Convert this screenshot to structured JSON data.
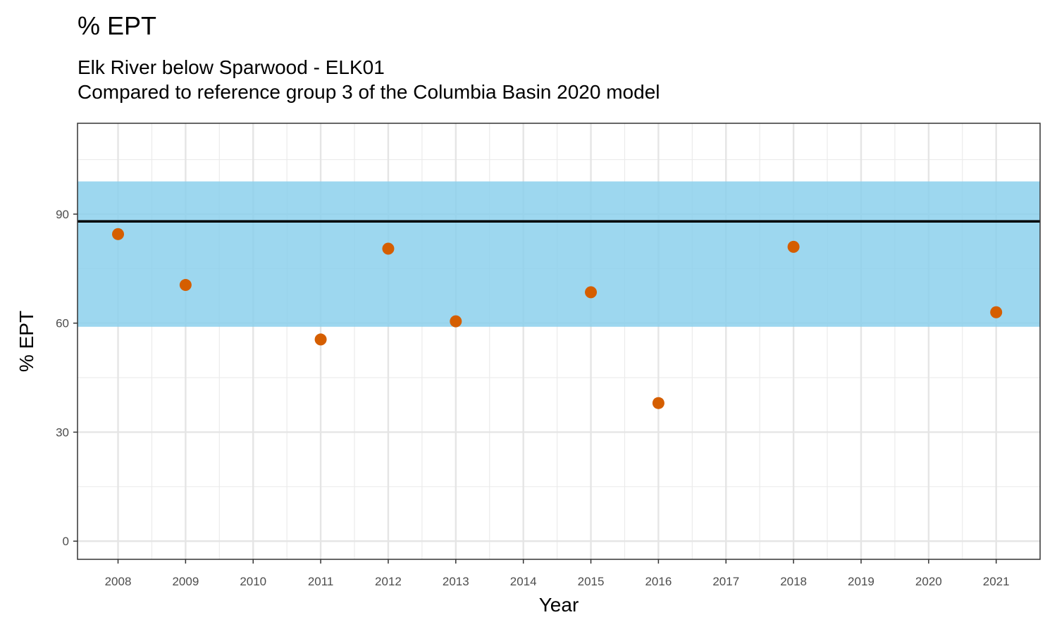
{
  "chart_data": {
    "type": "scatter",
    "title": "% EPT",
    "subtitle": [
      "Elk River below Sparwood - ELK01",
      "Compared to reference group 3 of the Columbia Basin 2020 model"
    ],
    "xlabel": "Year",
    "ylabel": "% EPT",
    "x_ticks": [
      "2008",
      "2009",
      "2010",
      "2011",
      "2012",
      "2013",
      "2014",
      "2015",
      "2016",
      "2017",
      "2018",
      "2019",
      "2020",
      "2021"
    ],
    "y_ticks": [
      0,
      30,
      60,
      90
    ],
    "ylim": [
      -5,
      115
    ],
    "xlim": [
      2007.4,
      2021.65
    ],
    "grid": true,
    "reference_band": {
      "low": 59,
      "high": 99,
      "color": "#87ceeb"
    },
    "reference_line": {
      "y": 88,
      "color": "#000000"
    },
    "points": {
      "color": "#d55e00",
      "x": [
        2008,
        2009,
        2011,
        2012,
        2013,
        2015,
        2016,
        2018,
        2021
      ],
      "y": [
        84.5,
        70.5,
        55.5,
        80.5,
        60.5,
        68.5,
        38,
        81,
        63
      ]
    }
  }
}
